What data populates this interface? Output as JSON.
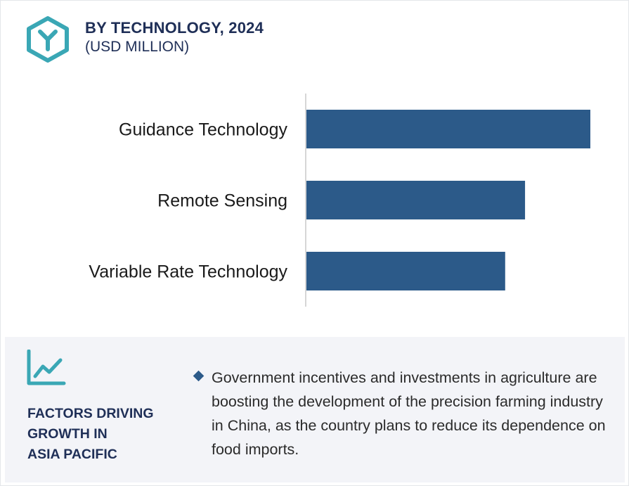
{
  "header": {
    "title": "BY TECHNOLOGY, 2024",
    "subtitle": "(USD MILLION)",
    "logo_icon": "hexagon-y-logo-icon"
  },
  "colors": {
    "bar": "#2c5a89",
    "heading": "#1f2f57",
    "accent": "#3aa7b5",
    "panel_bg": "#f3f4f8"
  },
  "chart_data": {
    "type": "bar",
    "orientation": "horizontal",
    "categories": [
      "Guidance Technology",
      "Remote Sensing",
      "Variable Rate Technology"
    ],
    "values": [
      100,
      77,
      70
    ],
    "title": "BY TECHNOLOGY, 2024",
    "subtitle": "(USD MILLION)",
    "xlabel": "",
    "ylabel": "",
    "xlim": [
      0,
      100
    ],
    "grid": false,
    "legend": "none"
  },
  "factors": {
    "icon": "trend-chart-icon",
    "heading_lines": [
      "FACTORS DRIVING",
      "GROWTH IN",
      "ASIA PACIFIC"
    ],
    "bullet_icon": "diamond-bullet-icon",
    "bullets": [
      "Government incentives and investments in agriculture are boosting the development of the precision farming industry in China, as the country plans to reduce its dependence on food imports."
    ]
  }
}
